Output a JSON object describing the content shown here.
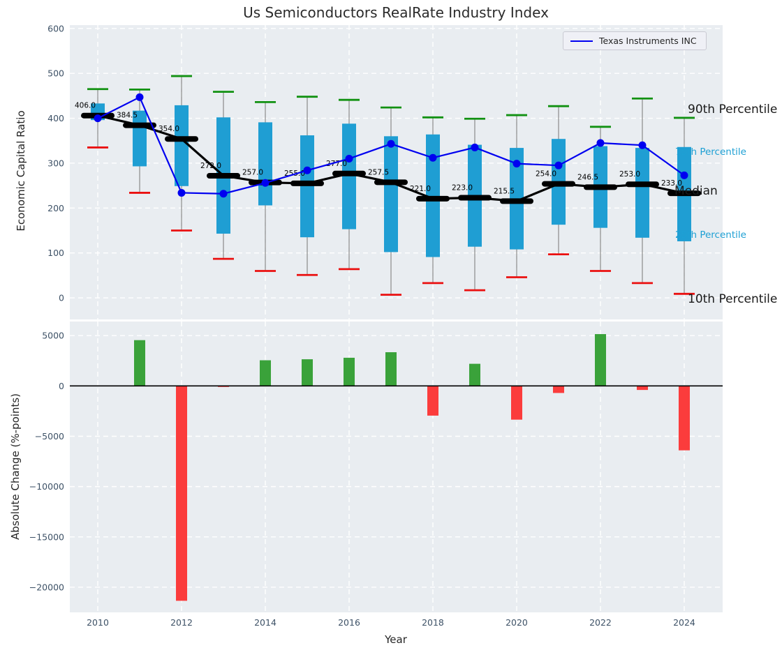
{
  "title": "Us Semiconductors RealRate Industry Index",
  "legend": {
    "series_label": "Texas Instruments INC"
  },
  "annotations": {
    "p90": "90th Percentile",
    "p75": "75th Percentile",
    "median": "Median",
    "p25": "25th Percentile",
    "p10": "10th Percentile"
  },
  "colors": {
    "plot_bg": "#e9edf1",
    "grid": "#ffffff",
    "box": "#1f9ed3",
    "whisker": "#8a8a8a",
    "cap_top": "#119111",
    "cap_bottom": "#ea1010",
    "median": "#000000",
    "ti_line": "#0000f0",
    "bar_pos": "#3aa23a",
    "bar_neg": "#fb3c3c",
    "tick_label": "#3d5166",
    "zero_line": "#000000"
  },
  "chart_data": [
    {
      "type": "boxplot+line",
      "title": "Us Semiconductors RealRate Industry Index",
      "ylabel": "Economic Capital Ratio",
      "x": [
        2010,
        2011,
        2012,
        2013,
        2014,
        2015,
        2016,
        2017,
        2018,
        2019,
        2020,
        2021,
        2022,
        2023,
        2024
      ],
      "xticks": [
        2010,
        2012,
        2014,
        2016,
        2018,
        2020,
        2022,
        2024
      ],
      "xlim": [
        2009.333,
        2024.917
      ],
      "yticks": [
        0,
        100,
        200,
        300,
        400,
        500,
        600
      ],
      "ylim": [
        -48,
        607.5
      ],
      "grid": true,
      "legend_position": "upper right",
      "series": [
        {
          "name": "90th Percentile",
          "values": [
            465,
            464,
            494,
            459,
            436,
            448,
            441,
            424,
            402,
            399,
            407,
            427,
            381,
            444,
            401
          ]
        },
        {
          "name": "75th Percentile",
          "values": [
            433,
            417,
            429,
            402,
            391,
            362,
            388,
            360,
            364,
            341,
            334,
            354,
            338,
            334,
            336
          ]
        },
        {
          "name": "Median",
          "values": [
            406.0,
            384.5,
            354.0,
            272.0,
            257.0,
            255.0,
            277.0,
            257.5,
            221.0,
            223.0,
            215.5,
            254.0,
            246.5,
            253.0,
            233.0
          ]
        },
        {
          "name": "25th Percentile",
          "values": [
            396,
            293,
            249,
            143,
            206,
            135,
            153,
            102,
            91,
            114,
            108,
            163,
            156,
            134,
            126
          ]
        },
        {
          "name": "10th Percentile",
          "values": [
            335,
            234,
            150,
            87,
            60,
            51,
            64,
            7,
            33,
            17,
            46,
            97,
            60,
            33,
            9
          ]
        },
        {
          "name": "Texas Instruments INC",
          "values": [
            400,
            447,
            234,
            232,
            256,
            284,
            310,
            343,
            312,
            335,
            299,
            295,
            345,
            340,
            273
          ]
        }
      ],
      "median_labels": [
        "406.0",
        "384.5",
        "354.0",
        "272.0",
        "257.0",
        "255.0",
        "277.0",
        "257.5",
        "221.0",
        "223.0",
        "215.5",
        "254.0",
        "246.5",
        "253.0",
        "233.0"
      ]
    },
    {
      "type": "bar",
      "ylabel": "Absolute Change (%-points)",
      "xlabel": "Year",
      "x": [
        2010,
        2011,
        2012,
        2013,
        2014,
        2015,
        2016,
        2017,
        2018,
        2019,
        2020,
        2021,
        2022,
        2023,
        2024
      ],
      "values": [
        null,
        4550,
        -21350,
        -100,
        2550,
        2650,
        2800,
        3350,
        -2950,
        2200,
        -3350,
        -700,
        5150,
        -400,
        -6400
      ],
      "xticks": [
        2010,
        2012,
        2014,
        2016,
        2018,
        2020,
        2022,
        2024
      ],
      "xtick_labels": [
        "2010",
        "2012",
        "2014",
        "2016",
        "2018",
        "2020",
        "2022",
        "2024"
      ],
      "xlim": [
        2009.333,
        2024.917
      ],
      "yticks": [
        5000,
        0,
        -5000,
        -10000,
        -15000,
        -20000
      ],
      "ytick_labels": [
        "5000",
        "0",
        "−5000",
        "−10000",
        "−15000",
        "−20000"
      ],
      "ylim": [
        -22500,
        6400
      ],
      "grid": true
    }
  ]
}
